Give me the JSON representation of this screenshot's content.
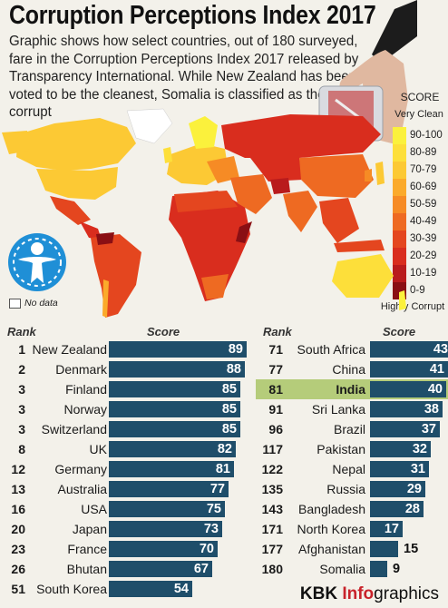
{
  "header": {
    "title": "Corruption Perceptions Index 2017",
    "subtitle": "Graphic shows how select countries, out of 180 surveyed, fare in the Corruption Perceptions Index 2017 released by Transparency International. While New Zealand has been voted to be the cleanest, Somalia is classified as the most corrupt"
  },
  "legend": {
    "title": "SCORE",
    "top_label": "Very Clean",
    "bottom_label": "Highly Corrupt",
    "nodata_label": "No data",
    "bands": [
      {
        "label": "90-100",
        "color": "#fbf13c"
      },
      {
        "label": "80-89",
        "color": "#fddf3a"
      },
      {
        "label": "70-79",
        "color": "#fcc934"
      },
      {
        "label": "60-69",
        "color": "#fbaa2b"
      },
      {
        "label": "50-59",
        "color": "#f68b25"
      },
      {
        "label": "40-49",
        "color": "#ee6a22"
      },
      {
        "label": "30-39",
        "color": "#e4461f"
      },
      {
        "label": "20-29",
        "color": "#d92d1e"
      },
      {
        "label": "10-19",
        "color": "#b91b1c"
      },
      {
        "label": "0-9",
        "color": "#8a0f14"
      }
    ]
  },
  "table": {
    "rank_header": "Rank",
    "score_header": "Score",
    "highlight_color": "#b5cc7a",
    "bar_color": "#1f4e6a"
  },
  "chart_data": {
    "type": "bar",
    "orientation": "horizontal",
    "xlim": [
      0,
      100
    ],
    "columns": [
      {
        "rows": [
          {
            "rank": "1",
            "country": "New Zealand",
            "score": 89
          },
          {
            "rank": "2",
            "country": "Denmark",
            "score": 88
          },
          {
            "rank": "3",
            "country": "Finland",
            "score": 85
          },
          {
            "rank": "3",
            "country": "Norway",
            "score": 85
          },
          {
            "rank": "3",
            "country": "Switzerland",
            "score": 85
          },
          {
            "rank": "8",
            "country": "UK",
            "score": 82
          },
          {
            "rank": "12",
            "country": "Germany",
            "score": 81
          },
          {
            "rank": "13",
            "country": "Australia",
            "score": 77
          },
          {
            "rank": "16",
            "country": "USA",
            "score": 75
          },
          {
            "rank": "20",
            "country": "Japan",
            "score": 73
          },
          {
            "rank": "23",
            "country": "France",
            "score": 70
          },
          {
            "rank": "26",
            "country": "Bhutan",
            "score": 67
          },
          {
            "rank": "51",
            "country": "South Korea",
            "score": 54
          }
        ]
      },
      {
        "rows": [
          {
            "rank": "71",
            "country": "South Africa",
            "score": 43
          },
          {
            "rank": "77",
            "country": "China",
            "score": 41
          },
          {
            "rank": "81",
            "country": "India",
            "score": 40,
            "highlight": true
          },
          {
            "rank": "91",
            "country": "Sri Lanka",
            "score": 38
          },
          {
            "rank": "96",
            "country": "Brazil",
            "score": 37
          },
          {
            "rank": "117",
            "country": "Pakistan",
            "score": 32
          },
          {
            "rank": "122",
            "country": "Nepal",
            "score": 31
          },
          {
            "rank": "135",
            "country": "Russia",
            "score": 29
          },
          {
            "rank": "143",
            "country": "Bangladesh",
            "score": 28
          },
          {
            "rank": "171",
            "country": "North Korea",
            "score": 17
          },
          {
            "rank": "177",
            "country": "Afghanistan",
            "score": 15
          },
          {
            "rank": "180",
            "country": "Somalia",
            "score": 9
          }
        ]
      }
    ]
  },
  "credit": {
    "brand": "KBK",
    "accent": "Info",
    "rest": "graphics"
  }
}
